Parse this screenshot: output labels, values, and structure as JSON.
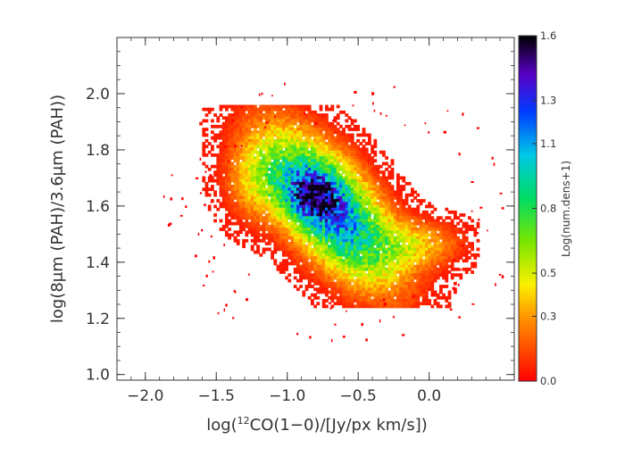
{
  "chart_data": {
    "type": "heatmap",
    "title": "",
    "xlabel": "log(12CO(1−0)/[Jy/px km/s])",
    "xlabel_parts": {
      "prefix": "log(",
      "sup": "12",
      "suffix": "CO(1−0)/[Jy/px km/s])"
    },
    "ylabel": "log(8μm (PAH)/3.6μm (PAH))",
    "xlim": [
      -2.2,
      0.6
    ],
    "ylim": [
      0.98,
      2.2
    ],
    "xticks": [
      -2.0,
      -1.5,
      -1.0,
      -0.5,
      0.0
    ],
    "xtick_labels": [
      "−2.0",
      "−1.5",
      "−1.0",
      "−0.5",
      "0.0"
    ],
    "yticks": [
      1.0,
      1.2,
      1.4,
      1.6,
      1.8,
      2.0
    ],
    "ytick_labels": [
      "1.0",
      "1.2",
      "1.4",
      "1.6",
      "1.8",
      "2.0"
    ],
    "grid": false,
    "density_peak": {
      "x": -0.82,
      "y": 1.64,
      "value": 1.5
    },
    "distribution_extent": {
      "x": [
        -1.55,
        0.3
      ],
      "y": [
        1.27,
        1.92
      ]
    },
    "colorbar": {
      "label": "Log(num.dens+1)",
      "range": [
        0.0,
        1.6
      ],
      "ticks": [
        0.0,
        0.3,
        0.5,
        0.8,
        1.1,
        1.3,
        1.6
      ],
      "tick_labels": [
        "0.0",
        "0.3",
        "0.5",
        "0.8",
        "1.1",
        "1.3",
        "1.6"
      ],
      "colormap": "rainbow (red → yellow → green → cyan → blue → purple → black)"
    }
  }
}
